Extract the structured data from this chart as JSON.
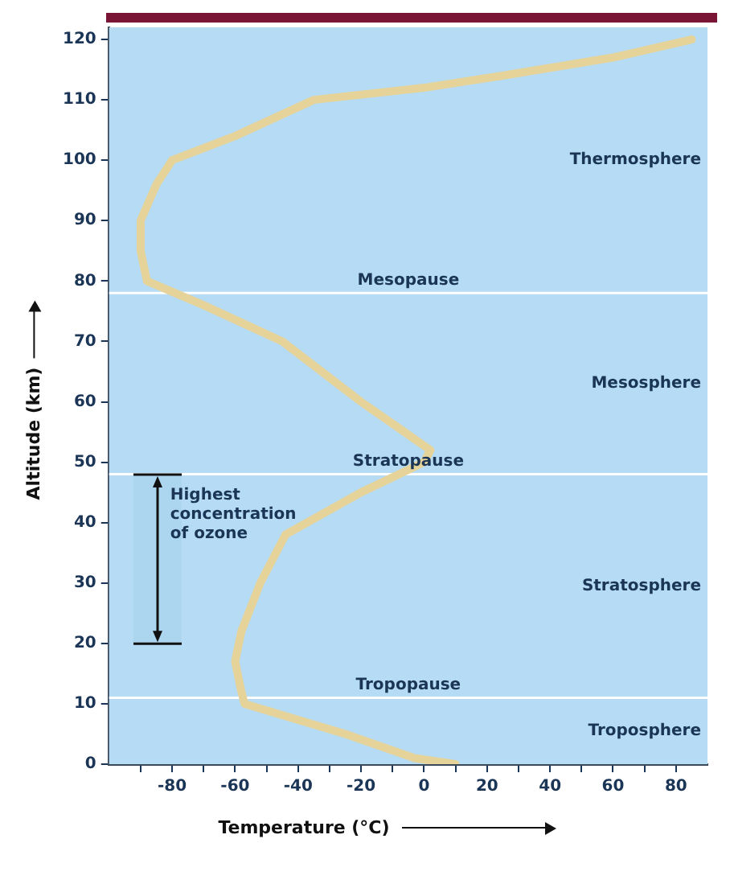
{
  "chart_data": {
    "type": "line",
    "xlabel": "Temperature (°C)",
    "ylabel": "Altitude (km)",
    "x": [
      10,
      -3,
      -25,
      -57,
      -58,
      -60,
      -58,
      -52,
      -44,
      -20,
      0,
      2,
      -20,
      -45,
      -70,
      -88,
      -90,
      -90,
      -85,
      -80,
      -60,
      -35,
      0,
      25,
      60,
      85
    ],
    "series": [
      {
        "color": "#e6d39a",
        "values": [
          0,
          1,
          5,
          10,
          12,
          17,
          22,
          30,
          38,
          45,
          50,
          52,
          60,
          70,
          76,
          80,
          85,
          90,
          96,
          100,
          104,
          110,
          112,
          114,
          117,
          120
        ]
      }
    ],
    "xlim": [
      -100,
      90
    ],
    "xticks": [
      {
        "value": -90,
        "label": null
      },
      -80,
      {
        "value": -70,
        "label": null
      },
      -60,
      {
        "value": -50,
        "label": null
      },
      -40,
      {
        "value": -30,
        "label": null
      },
      -20,
      {
        "value": -10,
        "label": null
      },
      0,
      {
        "value": 10,
        "label": null
      },
      20,
      {
        "value": 30,
        "label": null
      },
      40,
      {
        "value": 50,
        "label": null
      },
      60,
      {
        "value": 70,
        "label": null
      },
      80
    ],
    "ylim": [
      0,
      122
    ],
    "yticks": [
      0,
      10,
      20,
      30,
      40,
      50,
      60,
      70,
      80,
      90,
      100,
      110,
      120
    ],
    "ref_lines": [
      {
        "axis": "y",
        "value": 11,
        "label": "Tropopause",
        "color": "#ffffff"
      },
      {
        "axis": "y",
        "value": 48,
        "label": "Stratopause",
        "color": "#ffffff"
      },
      {
        "axis": "y",
        "value": 78,
        "label": "Mesopause",
        "color": "#ffffff"
      }
    ],
    "bands": [
      {
        "axis": "y",
        "from": 20,
        "to": 48,
        "label": "Highest concentration of ozone",
        "color": "#acd5f0"
      }
    ],
    "annotations": [
      "Troposphere",
      "Stratosphere",
      "Mesosphere",
      "Thermosphere"
    ],
    "marker": "none",
    "line_style": "solid",
    "legend": false
  }
}
